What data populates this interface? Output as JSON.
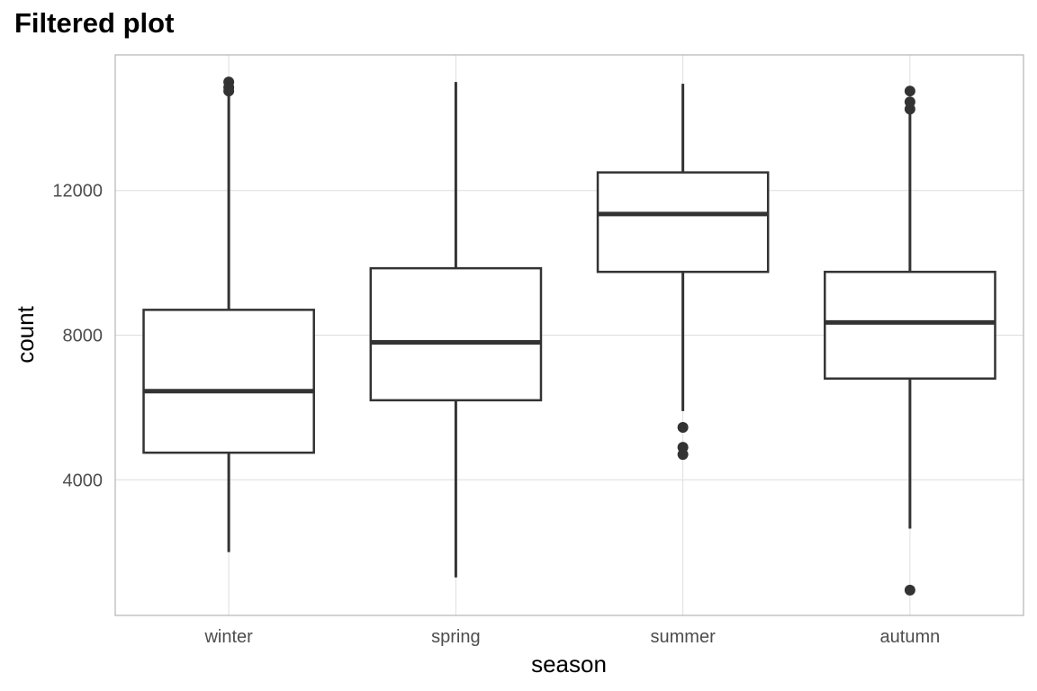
{
  "chart_data": {
    "type": "boxplot",
    "title": "Filtered plot",
    "xlabel": "season",
    "ylabel": "count",
    "categories": [
      "winter",
      "spring",
      "summer",
      "autumn"
    ],
    "ylim": [
      250,
      15750
    ],
    "yticks": [
      4000,
      8000,
      12000
    ],
    "ytick_labels": [
      "4000",
      "8000",
      "12000"
    ],
    "grid": true,
    "boxes": [
      {
        "category": "winter",
        "lower_whisker": 2000,
        "q1": 4750,
        "median": 6450,
        "q3": 8700,
        "upper_whisker": 14650,
        "outliers": [
          15000,
          14850,
          14750
        ]
      },
      {
        "category": "spring",
        "lower_whisker": 1300,
        "q1": 6200,
        "median": 7800,
        "q3": 9850,
        "upper_whisker": 15000,
        "outliers": []
      },
      {
        "category": "summer",
        "lower_whisker": 5900,
        "q1": 9750,
        "median": 11350,
        "q3": 12500,
        "upper_whisker": 14950,
        "outliers": [
          5450,
          4900,
          4700
        ]
      },
      {
        "category": "autumn",
        "lower_whisker": 2650,
        "q1": 6800,
        "median": 8350,
        "q3": 9750,
        "upper_whisker": 14150,
        "outliers": [
          14750,
          14450,
          14250,
          950
        ]
      }
    ],
    "colors": {
      "box_stroke": "#333333",
      "grid": "#dedede",
      "panel_border": "#b3b3b3",
      "tick_text": "#4d4d4d"
    }
  }
}
